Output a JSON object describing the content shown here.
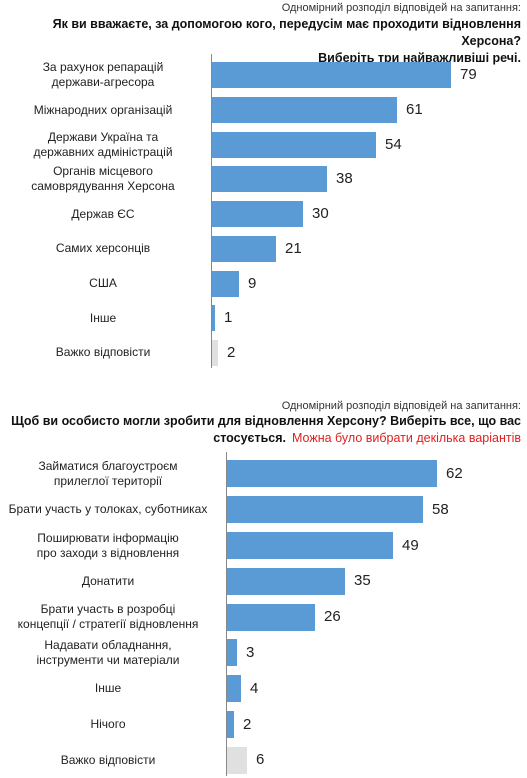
{
  "colors": {
    "bar": "#5b9bd5",
    "bar_dk": "#e0e0e0",
    "note": "#e0201f"
  },
  "q1": {
    "subtitle": "Одномірний розподіл відповідей на запитання:",
    "question_line1": "Як ви вважаєте, за допомогою кого, передусім має проходити відновлення Херсона?",
    "question_line2": "Виберіть три найважливіші речі."
  },
  "q2": {
    "subtitle": "Одномірний розподіл відповідей на запитання:",
    "question_line1": "Щоб ви особисто могли зробити для відновлення Херсону? Виберіть все, що вас",
    "question_line2": "стосується.",
    "note": "Можна було вибрати декілька варіантів"
  },
  "chart_data": [
    {
      "type": "bar",
      "orientation": "horizontal",
      "categories": [
        "За рахунок репарацій держави-агресора",
        "Міжнародних організацій",
        "Держави Україна та державних адміністрацій",
        "Органів місцевого самоврядування Херсона",
        "Держав ЄС",
        "Самих херсонців",
        "США",
        "Інше",
        "Важко відповісти"
      ],
      "category_lines": [
        [
          "За рахунок репарацій",
          "держави-агресора"
        ],
        [
          "Міжнародних організацій"
        ],
        [
          "Держави Україна та",
          "державних адміністрацій"
        ],
        [
          "Органів місцевого",
          "самоврядування Херсона"
        ],
        [
          "Держав ЄС"
        ],
        [
          "Самих херсонців"
        ],
        [
          "США"
        ],
        [
          "Інше"
        ],
        [
          "Важко відповісти"
        ]
      ],
      "values": [
        79,
        61,
        54,
        38,
        30,
        21,
        9,
        1,
        2
      ],
      "xlim": [
        0,
        100
      ]
    },
    {
      "type": "bar",
      "orientation": "horizontal",
      "categories": [
        "Займатися благоустроєм прилеглої території",
        "Брати участь у толоках, суботниках",
        "Поширювати інформацію про заходи з відновлення",
        "Донатити",
        "Брати участь в розробці концепції / стратегії відновлення",
        "Надавати обладнання, інструменти чи матеріали",
        "Інше",
        "Нічого",
        "Важко відповісти"
      ],
      "category_lines": [
        [
          "Займатися благоустроєм",
          "прилеглої території"
        ],
        [
          "Брати участь у толоках, суботниках"
        ],
        [
          "Поширювати інформацію",
          "про заходи з відновлення"
        ],
        [
          "Донатити"
        ],
        [
          "Брати участь в розробці",
          "концепції / стратегії відновлення"
        ],
        [
          "Надавати обладнання,",
          "інструменти чи матеріали"
        ],
        [
          "Інше"
        ],
        [
          "Нічого"
        ],
        [
          "Важко відповісти"
        ]
      ],
      "values": [
        62,
        58,
        49,
        35,
        26,
        3,
        4,
        2,
        6
      ],
      "xlim": [
        0,
        100
      ]
    }
  ]
}
